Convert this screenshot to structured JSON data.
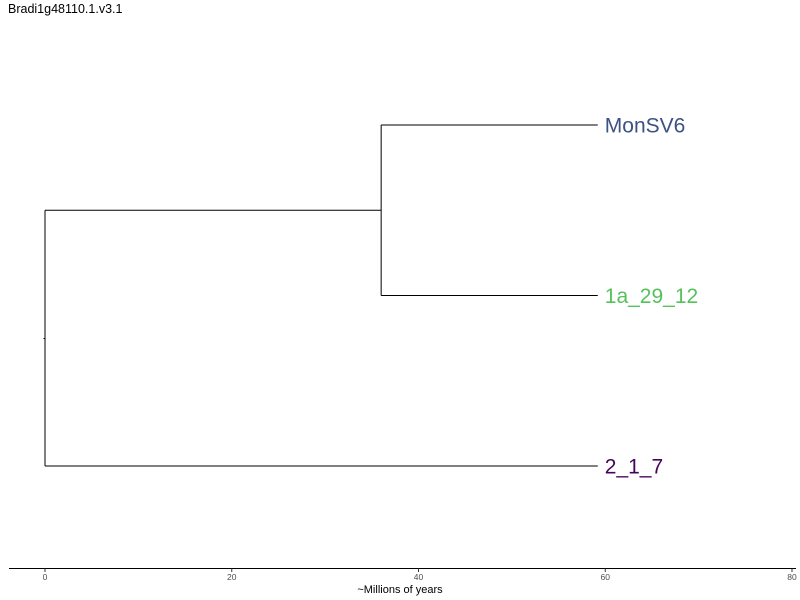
{
  "title": "Bradi1g48110.1.v3.1",
  "chart_data": {
    "type": "dendrogram",
    "xlabel": "~Millions of years",
    "xlim": [
      0,
      80
    ],
    "xticks": [
      0,
      20,
      40,
      60,
      80
    ],
    "tips": [
      {
        "label": "MonSV6",
        "color": "#3B5282",
        "x": 59.2
      },
      {
        "label": "1a_29_12",
        "color": "#56C15C",
        "x": 59.2
      },
      {
        "label": "2_1_7",
        "color": "#43045A",
        "x": 59.2
      }
    ],
    "nodes": [
      {
        "name": "inner",
        "x": 36.0,
        "children": [
          "MonSV6",
          "1a_29_12"
        ]
      },
      {
        "name": "root",
        "x": 0.0,
        "children": [
          "inner",
          "2_1_7"
        ]
      }
    ]
  }
}
